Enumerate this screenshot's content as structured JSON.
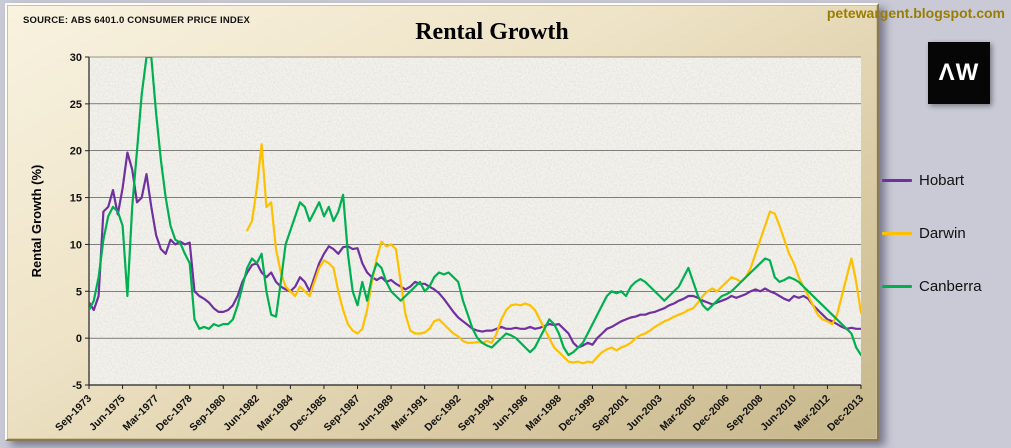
{
  "header": {
    "source": "SOURCE: ABS 6401.0 CONSUMER PRICE INDEX",
    "title": "Rental Growth",
    "site": "petewargent.blogspot.com"
  },
  "logo": {
    "text": "ΛW",
    "bg": "#060606",
    "fg": "#ffffff"
  },
  "colors": {
    "page_bg": "#c9cad6",
    "panel_light": "#f8f2e0",
    "panel_dark": "#c6b68b",
    "site_credit": "#9a7d00"
  },
  "chart_data": {
    "type": "line",
    "title": "Rental Growth",
    "xlabel": "",
    "ylabel": "Rental Growth (%)",
    "ylim": [
      -5,
      30
    ],
    "ytick_step": 5,
    "grid": "horizontal",
    "legend_position": "right",
    "n_points": 162,
    "x_frequency": "quarterly",
    "x_tick_every": 7,
    "x_tick_labels": [
      "Sep-1973",
      "Jun-1975",
      "Mar-1977",
      "Dec-1978",
      "Sep-1980",
      "Jun-1982",
      "Mar-1984",
      "Dec-1985",
      "Sep-1987",
      "Jun-1989",
      "Mar-1991",
      "Dec-1992",
      "Sep-1994",
      "Jun-1996",
      "Mar-1998",
      "Dec-1999",
      "Sep-2001",
      "Jun-2003",
      "Mar-2005",
      "Dec-2006",
      "Sep-2008",
      "Jun-2010",
      "Mar-2012",
      "Dec-2013"
    ],
    "series": [
      {
        "name": "Hobart",
        "color": "#7030A0",
        "values": [
          3.8,
          3.0,
          4.5,
          13.5,
          14.0,
          15.8,
          13.2,
          16.0,
          19.8,
          18.0,
          14.5,
          15.0,
          17.5,
          14.0,
          11.0,
          9.5,
          9.0,
          10.5,
          10.0,
          10.3,
          10.0,
          10.2,
          5.0,
          4.5,
          4.2,
          3.8,
          3.2,
          2.8,
          2.8,
          3.0,
          3.5,
          4.5,
          6.0,
          7.0,
          7.8,
          8.0,
          7.0,
          6.5,
          7.0,
          6.0,
          5.5,
          5.2,
          5.0,
          5.5,
          6.5,
          6.0,
          5.0,
          6.5,
          8.0,
          9.0,
          9.8,
          9.5,
          9.0,
          9.7,
          9.8,
          9.5,
          9.6,
          8.0,
          7.0,
          6.5,
          6.2,
          6.5,
          6.0,
          6.2,
          5.8,
          5.5,
          5.2,
          5.5,
          6.0,
          5.8,
          5.8,
          5.5,
          5.2,
          4.8,
          4.2,
          3.5,
          2.8,
          2.2,
          1.8,
          1.4,
          1.0,
          0.8,
          0.7,
          0.8,
          0.8,
          1.0,
          1.2,
          1.0,
          1.0,
          1.1,
          1.0,
          1.0,
          1.2,
          1.0,
          1.1,
          1.3,
          1.5,
          1.4,
          1.5,
          1.0,
          0.5,
          -0.5,
          -1.0,
          -0.8,
          -0.5,
          -0.7,
          0.0,
          0.5,
          1.0,
          1.2,
          1.5,
          1.8,
          2.0,
          2.2,
          2.3,
          2.5,
          2.5,
          2.7,
          2.8,
          3.0,
          3.2,
          3.5,
          3.7,
          4.0,
          4.2,
          4.5,
          4.5,
          4.3,
          4.0,
          3.8,
          3.6,
          3.8,
          4.0,
          4.2,
          4.5,
          4.3,
          4.5,
          4.7,
          5.0,
          5.2,
          5.0,
          5.3,
          5.0,
          4.8,
          4.5,
          4.2,
          4.0,
          4.5,
          4.3,
          4.5,
          4.2,
          3.5,
          3.0,
          2.5,
          2.0,
          1.8,
          1.5,
          1.2,
          1.0,
          1.1,
          1.0,
          1.0
        ]
      },
      {
        "name": "Darwin",
        "color": "#FFC000",
        "values": [
          null,
          null,
          null,
          null,
          null,
          null,
          null,
          null,
          null,
          null,
          null,
          null,
          null,
          null,
          null,
          null,
          null,
          null,
          null,
          null,
          null,
          null,
          null,
          null,
          null,
          null,
          null,
          null,
          null,
          null,
          null,
          null,
          null,
          11.5,
          12.5,
          16.0,
          20.7,
          14.0,
          14.5,
          9.5,
          7.0,
          5.5,
          5.0,
          4.5,
          5.5,
          5.0,
          4.5,
          6.0,
          7.5,
          8.3,
          8.0,
          7.5,
          5.0,
          3.0,
          1.5,
          0.8,
          0.5,
          1.0,
          3.0,
          6.0,
          8.5,
          10.3,
          9.8,
          10.0,
          9.5,
          6.0,
          2.5,
          0.8,
          0.5,
          0.5,
          0.6,
          1.0,
          1.8,
          2.0,
          1.5,
          1.0,
          0.5,
          0.2,
          -0.3,
          -0.5,
          -0.5,
          -0.4,
          -0.5,
          -0.3,
          -0.5,
          0.5,
          2.0,
          3.0,
          3.5,
          3.6,
          3.5,
          3.7,
          3.5,
          3.0,
          2.0,
          1.0,
          0.0,
          -1.0,
          -1.5,
          -2.0,
          -2.5,
          -2.6,
          -2.5,
          -2.7,
          -2.5,
          -2.6,
          -2.0,
          -1.5,
          -1.2,
          -1.0,
          -1.3,
          -1.0,
          -0.8,
          -0.5,
          0.0,
          0.3,
          0.5,
          0.8,
          1.2,
          1.5,
          1.8,
          2.0,
          2.3,
          2.5,
          2.7,
          3.0,
          3.2,
          3.8,
          4.5,
          5.0,
          5.3,
          5.0,
          5.5,
          6.0,
          6.5,
          6.3,
          6.0,
          6.5,
          7.5,
          9.0,
          10.5,
          12.0,
          13.5,
          13.3,
          12.0,
          10.5,
          9.0,
          8.0,
          6.5,
          5.5,
          4.5,
          3.5,
          2.5,
          2.0,
          1.8,
          1.5,
          2.5,
          4.5,
          6.5,
          8.5,
          6.0,
          2.7
        ]
      },
      {
        "name": "Canberra",
        "color": "#00B050",
        "values": [
          3.0,
          4.0,
          6.5,
          10.5,
          13.0,
          14.0,
          13.5,
          12.0,
          4.5,
          14.0,
          20.0,
          26.0,
          30.0,
          30.0,
          24.0,
          19.0,
          15.0,
          12.0,
          10.5,
          10.2,
          9.0,
          8.0,
          2.0,
          1.0,
          1.2,
          1.0,
          1.5,
          1.3,
          1.5,
          1.5,
          2.0,
          3.5,
          5.5,
          7.5,
          8.5,
          8.0,
          9.0,
          5.0,
          2.5,
          2.3,
          6.0,
          10.0,
          11.5,
          13.0,
          14.5,
          14.0,
          12.5,
          13.5,
          14.5,
          13.0,
          14.0,
          12.5,
          13.5,
          15.3,
          9.0,
          5.0,
          3.5,
          6.0,
          4.0,
          6.5,
          8.0,
          7.5,
          6.0,
          5.0,
          4.5,
          4.0,
          4.5,
          5.0,
          5.5,
          6.0,
          5.0,
          5.5,
          6.5,
          7.0,
          6.8,
          7.0,
          6.5,
          6.0,
          4.0,
          2.5,
          1.0,
          0.0,
          -0.5,
          -0.8,
          -1.0,
          -0.5,
          0.0,
          0.5,
          0.3,
          0.0,
          -0.5,
          -1.0,
          -1.5,
          -1.0,
          0.0,
          1.0,
          2.0,
          1.5,
          0.5,
          -1.0,
          -1.8,
          -1.5,
          -1.0,
          -0.5,
          0.5,
          1.5,
          2.5,
          3.5,
          4.5,
          5.0,
          4.8,
          5.0,
          4.5,
          5.5,
          6.0,
          6.3,
          6.0,
          5.5,
          5.0,
          4.5,
          4.0,
          4.5,
          5.0,
          5.5,
          6.5,
          7.5,
          6.0,
          4.5,
          3.5,
          3.0,
          3.5,
          4.0,
          4.5,
          4.7,
          5.0,
          5.5,
          6.0,
          6.5,
          7.0,
          7.5,
          8.0,
          8.5,
          8.3,
          6.5,
          6.0,
          6.2,
          6.5,
          6.3,
          6.0,
          5.5,
          5.0,
          4.5,
          4.0,
          3.5,
          3.0,
          2.5,
          2.0,
          1.5,
          1.0,
          0.5,
          -1.0,
          -1.8
        ]
      }
    ]
  }
}
